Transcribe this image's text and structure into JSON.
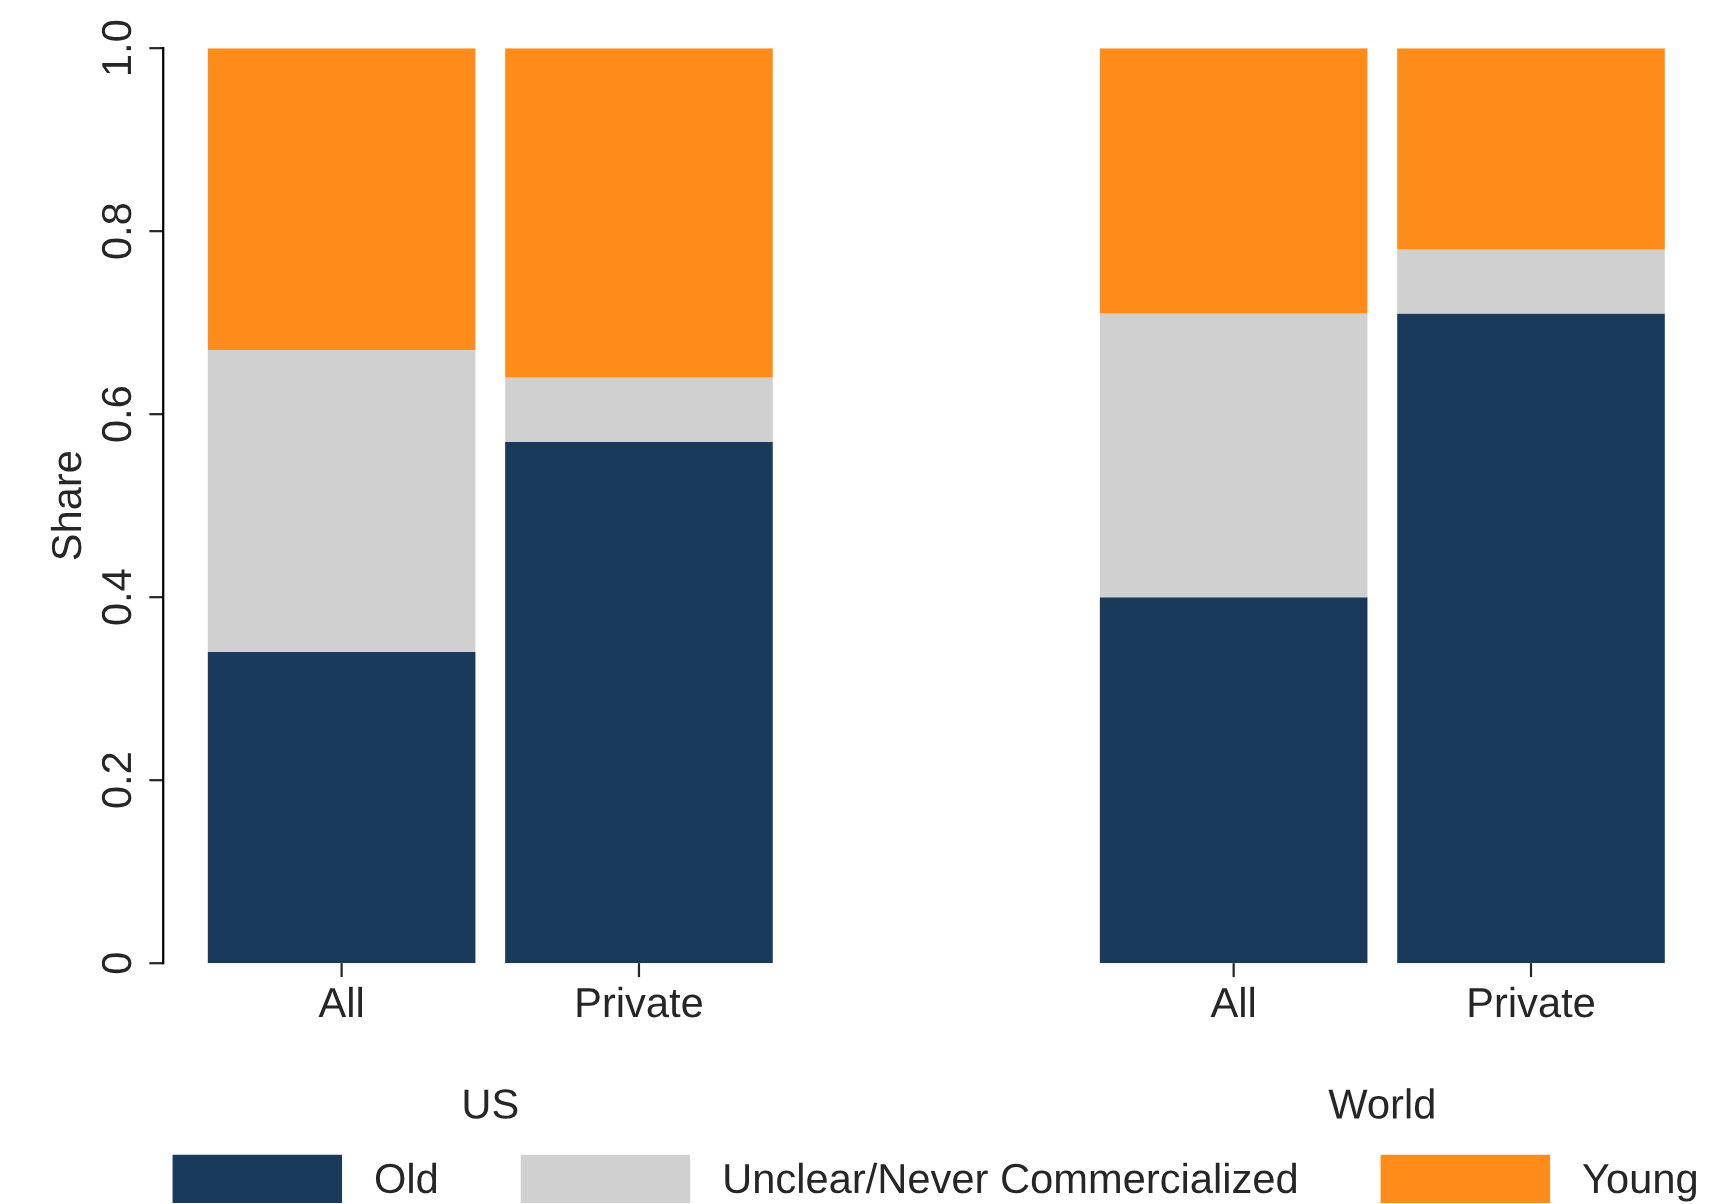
{
  "chart_data": {
    "type": "bar",
    "stacked": true,
    "ylabel": "Share",
    "categories": [
      "All",
      "Private",
      null,
      "All",
      "Private"
    ],
    "series": [
      {
        "name": "Old",
        "color": "#1a3a5c",
        "values": [
          0.34,
          0.57,
          null,
          0.4,
          0.71
        ]
      },
      {
        "name": "Unclear/Never Commercialized",
        "color": "#d0d0d0",
        "values": [
          0.33,
          0.07,
          null,
          0.31,
          0.07
        ]
      },
      {
        "name": "Young",
        "color": "#ff8c1a",
        "values": [
          0.33,
          0.36,
          null,
          0.29,
          0.22
        ]
      }
    ],
    "ylim": [
      0,
      1.0
    ],
    "yticks": [
      0,
      {
        "value": 0.2,
        "label": "0.2"
      },
      {
        "value": 0.4,
        "label": "0.4"
      },
      {
        "value": 0.6,
        "label": "0.6"
      },
      {
        "value": 0.8,
        "label": "0.8"
      },
      {
        "value": 1,
        "label": "1.0"
      }
    ],
    "annotations": [
      "US",
      "World"
    ],
    "grid": false,
    "legend": "bottom"
  }
}
